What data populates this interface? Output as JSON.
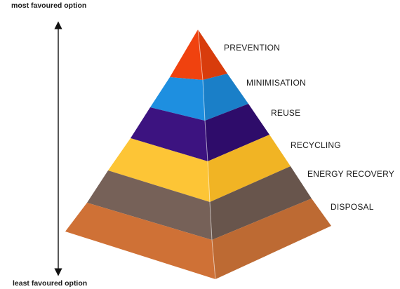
{
  "axis": {
    "top_label": "most favoured option",
    "bottom_label": "least favoured option"
  },
  "tiers": [
    {
      "label": "PREVENTION",
      "color": "#f0420f",
      "shade": "#d83c0c"
    },
    {
      "label": "MINIMISATION",
      "color": "#1e8fe0",
      "shade": "#1a7fc8"
    },
    {
      "label": "REUSE",
      "color": "#3c1380",
      "shade": "#2e0c6a"
    },
    {
      "label": "RECYCLING",
      "color": "#fdc536",
      "shade": "#f1b424"
    },
    {
      "label": "ENERGY RECOVERY",
      "color": "#766158",
      "shade": "#68554c"
    },
    {
      "label": "DISPOSAL",
      "color": "#cf7136",
      "shade": "#bd6a33"
    }
  ]
}
